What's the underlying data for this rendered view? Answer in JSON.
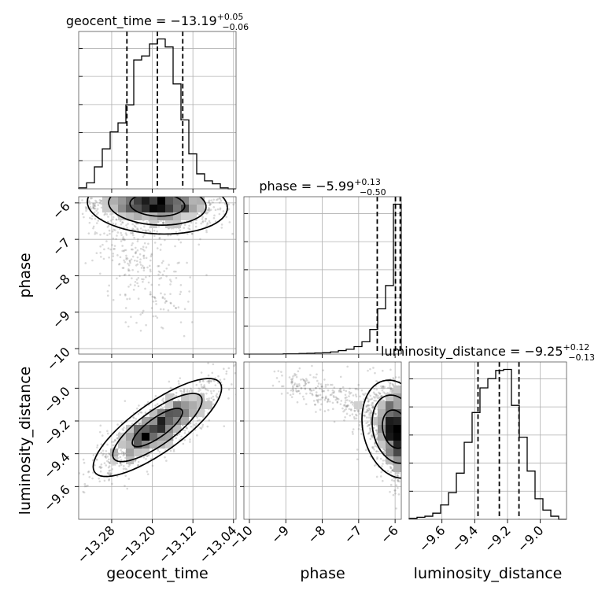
{
  "chart_data": {
    "type": "corner",
    "parameters": [
      "geocent_time",
      "phase",
      "luminosity_distance"
    ],
    "axis_labels": {
      "geocent_time": "geocent_time",
      "phase": "phase",
      "luminosity_distance": "luminosity_distance"
    },
    "titles": [
      {
        "param": "geocent_time",
        "prefix": "geocent_time = −13.19",
        "plus": "+0.05",
        "minus": "−0.06"
      },
      {
        "param": "phase",
        "prefix": "phase = −5.99",
        "plus": "+0.13",
        "minus": "−0.50"
      },
      {
        "param": "luminosity_distance",
        "prefix": "luminosity_distance = −9.25",
        "plus": "+0.12",
        "minus": "−0.13"
      }
    ],
    "ranges": {
      "geocent_time": [
        -13.345,
        -13.035
      ],
      "phase": [
        -10.15,
        -5.83
      ],
      "luminosity_distance": [
        -9.8,
        -8.84
      ]
    },
    "ticks": {
      "geocent_time": {
        "values": [
          -13.28,
          -13.2,
          -13.12,
          -13.04
        ],
        "labels": [
          "−13.28",
          "−13.20",
          "−13.12",
          "−13.04"
        ]
      },
      "phase": {
        "values": [
          -10,
          -9,
          -8,
          -7,
          -6
        ],
        "labels": [
          "−10",
          "−9",
          "−8",
          "−7",
          "−6"
        ]
      },
      "luminosity_distance": {
        "values": [
          -9.6,
          -9.4,
          -9.2,
          -9.0
        ],
        "labels": [
          "−9.6",
          "−9.4",
          "−9.2",
          "−9.0"
        ]
      }
    },
    "quantiles": {
      "geocent_time": [
        -13.25,
        -13.19,
        -13.14
      ],
      "phase": [
        -6.49,
        -5.99,
        -5.86
      ],
      "luminosity_distance": [
        -9.38,
        -9.25,
        -9.13
      ]
    },
    "histograms": {
      "geocent_time": {
        "edges": [
          -13.345,
          -13.3295,
          -13.314,
          -13.2985,
          -13.283,
          -13.2675,
          -13.252,
          -13.2365,
          -13.221,
          -13.2055,
          -13.19,
          -13.1745,
          -13.159,
          -13.1435,
          -13.128,
          -13.1125,
          -13.097,
          -13.0815,
          -13.066,
          -13.0505,
          -13.035
        ],
        "counts": [
          1,
          6,
          22,
          40,
          57,
          66,
          84,
          129,
          133,
          145,
          150,
          142,
          105,
          69,
          35,
          15,
          8,
          5,
          1,
          0
        ]
      },
      "phase": {
        "edges": [
          -10.15,
          -9.934,
          -9.718,
          -9.502,
          -9.286,
          -9.07,
          -8.854,
          -8.638,
          -8.422,
          -8.206,
          -7.99,
          -7.774,
          -7.558,
          -7.342,
          -7.126,
          -6.91,
          -6.694,
          -6.478,
          -6.262,
          -6.046,
          -5.83
        ],
        "counts": [
          0,
          0,
          0,
          0,
          0,
          1,
          1,
          2,
          3,
          4,
          5,
          8,
          13,
          18,
          28,
          46,
          92,
          169,
          256,
          560
        ]
      },
      "luminosity_distance": {
        "edges": [
          -9.8,
          -9.752,
          -9.704,
          -9.656,
          -9.608,
          -9.56,
          -9.512,
          -9.464,
          -9.416,
          -9.368,
          -9.32,
          -9.272,
          -9.224,
          -9.176,
          -9.128,
          -9.08,
          -9.032,
          -8.984,
          -8.936,
          -8.888,
          -8.84
        ],
        "counts": [
          1,
          2,
          3,
          6,
          14,
          26,
          45,
          75,
          104,
          128,
          137,
          145,
          146,
          111,
          80,
          47,
          20,
          9,
          3,
          0
        ]
      }
    },
    "samples_2d": [
      {
        "x": "geocent_time",
        "y": "phase",
        "center": [
          -13.19,
          -6.05
        ],
        "spread": [
          0.06,
          0.35
        ],
        "correlation": -0.1,
        "tail": {
          "from": [
            -13.26,
            -6.6
          ],
          "to": [
            -13.18,
            -9.1
          ],
          "width": 0.35
        }
      },
      {
        "x": "geocent_time",
        "y": "luminosity_distance",
        "center": [
          -13.19,
          -9.24
        ],
        "spread": [
          0.055,
          0.13
        ],
        "correlation": 0.8
      },
      {
        "x": "phase",
        "y": "luminosity_distance",
        "center": [
          -5.99,
          -9.25
        ],
        "spread": [
          0.4,
          0.13
        ],
        "correlation": -0.2,
        "tail": {
          "from": [
            -6.5,
            -9.15
          ],
          "to": [
            -9.0,
            -8.95
          ],
          "width": 0.2
        }
      }
    ],
    "grid": true
  }
}
